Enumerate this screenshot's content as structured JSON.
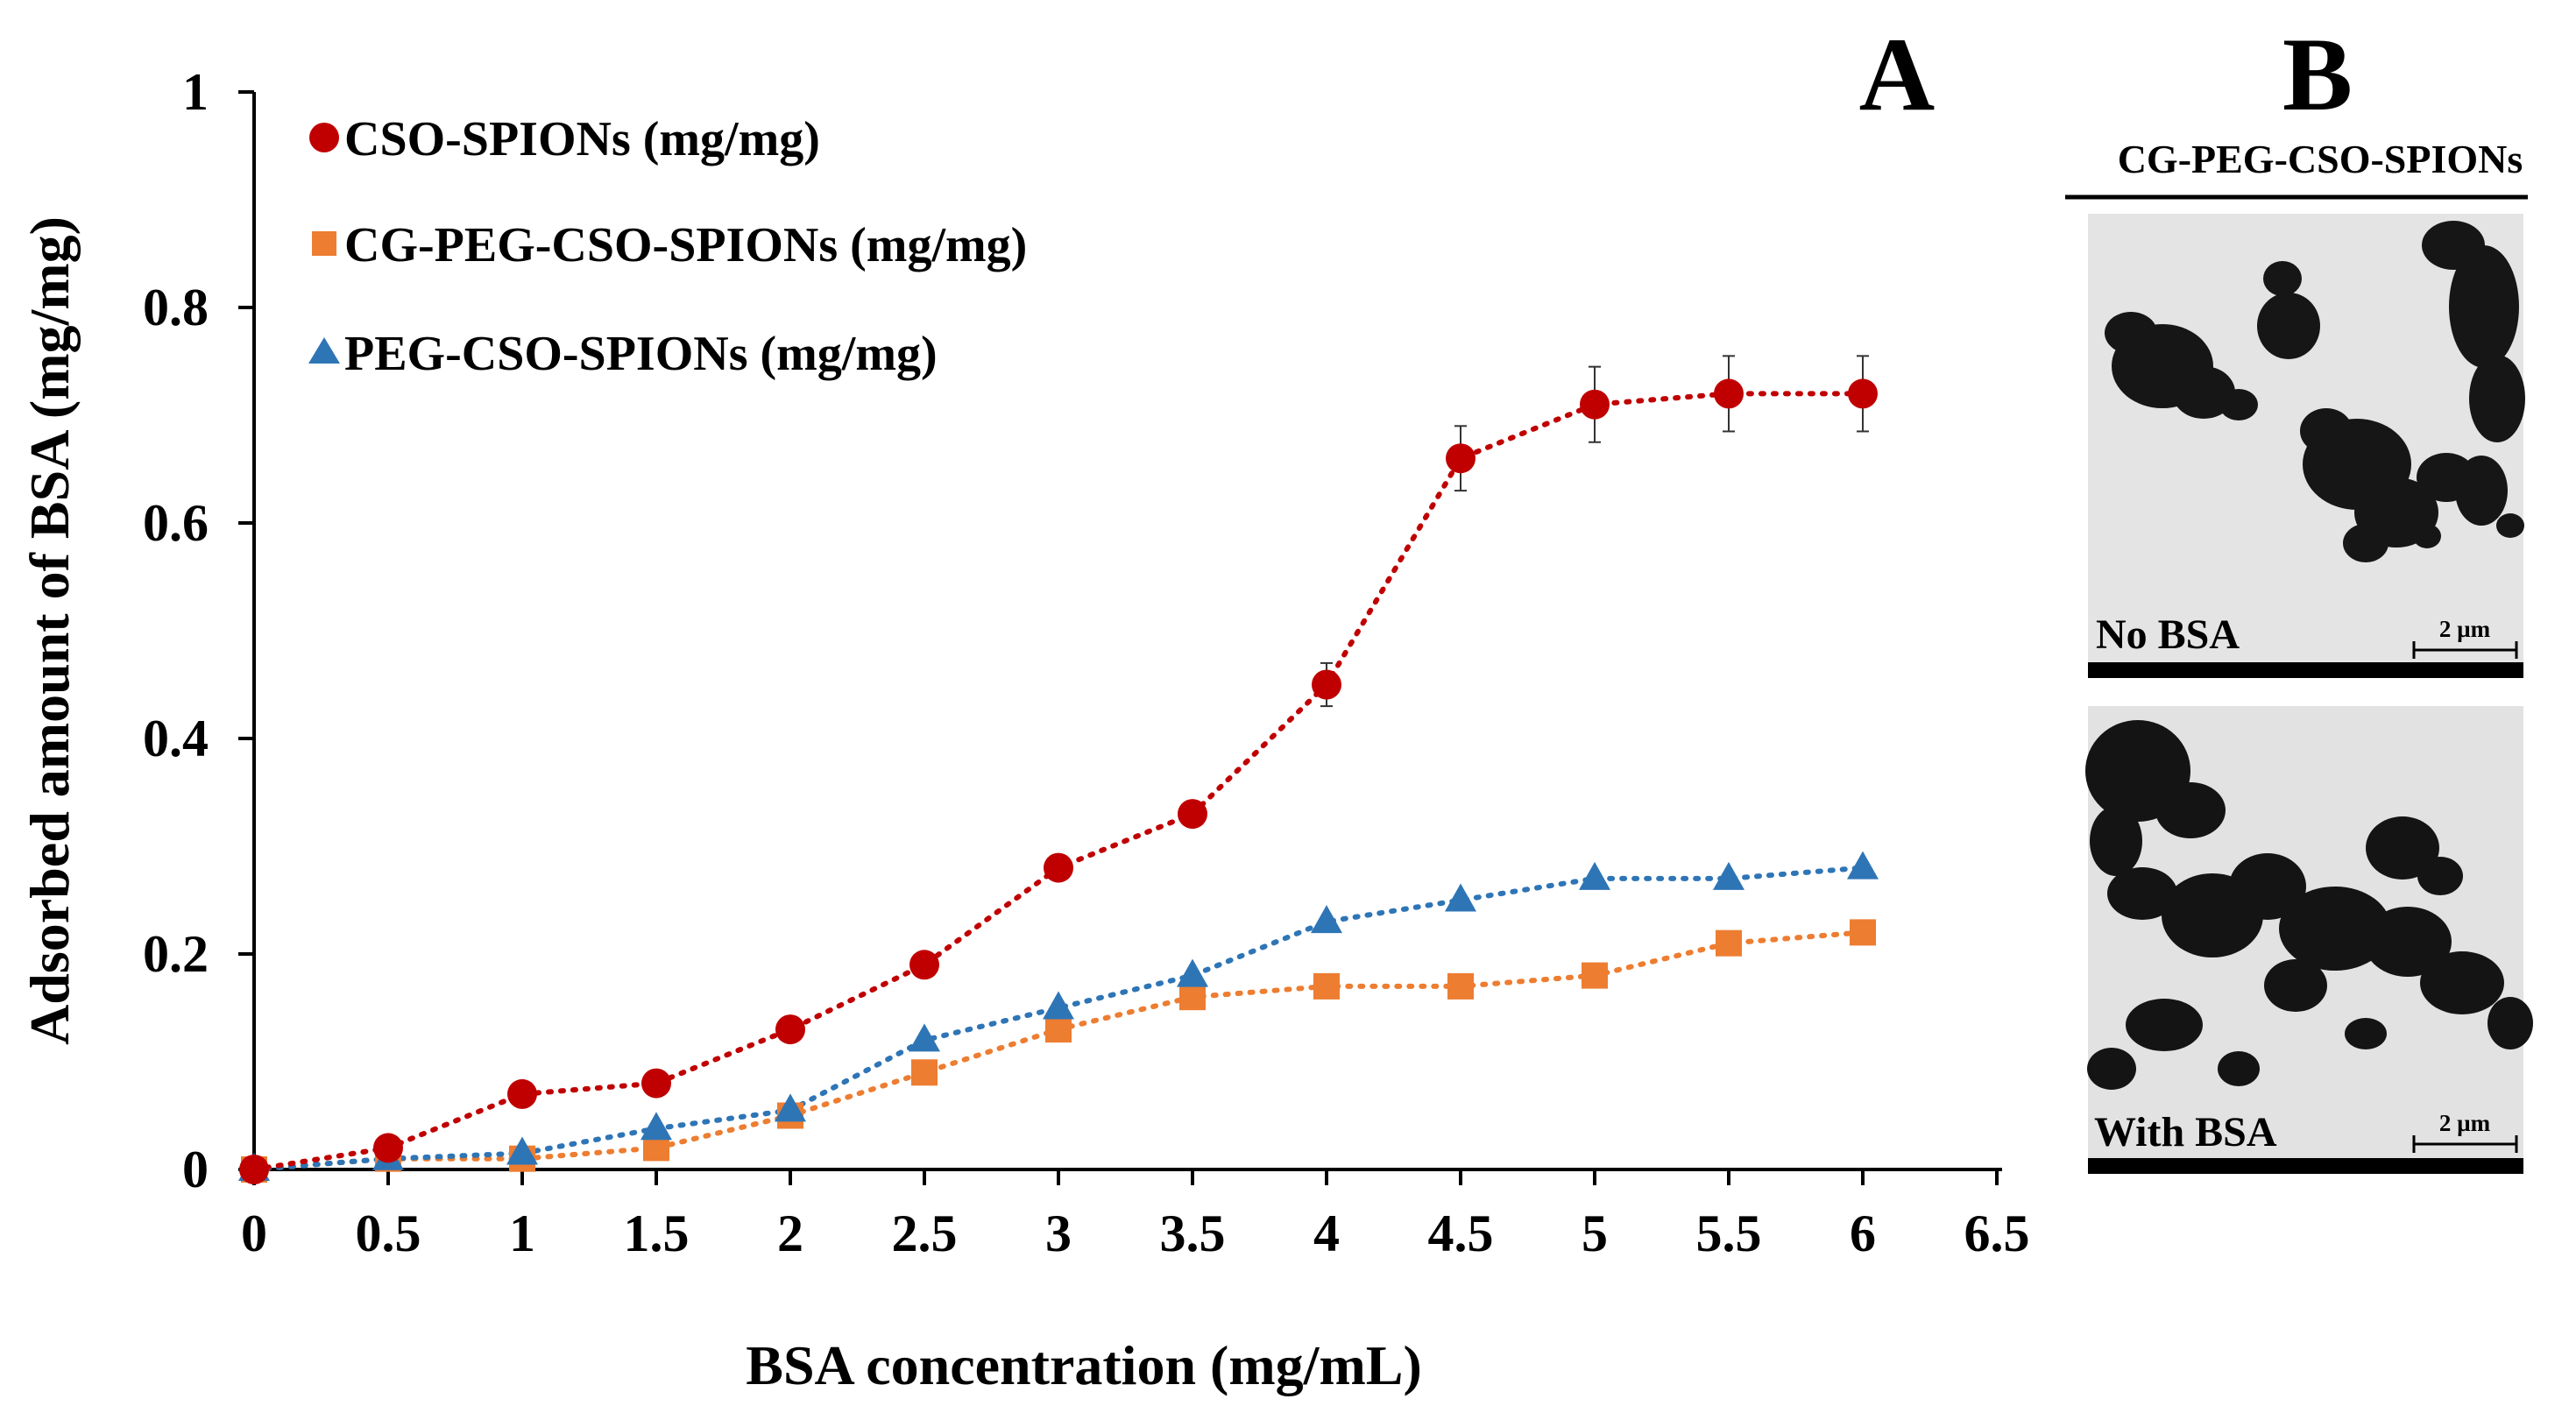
{
  "chart_data": {
    "type": "line",
    "panel_label": "A",
    "xlabel": "BSA concentration (mg/mL)",
    "ylabel": "Adsorbed amount of BSA (mg/mg)",
    "xlim": [
      0,
      6.5
    ],
    "ylim": [
      0,
      1
    ],
    "x_ticks": [
      "0",
      "0.5",
      "1",
      "1.5",
      "2",
      "2.5",
      "3",
      "3.5",
      "4",
      "4.5",
      "5",
      "5.5",
      "6",
      "6.5"
    ],
    "y_ticks": [
      "0",
      "0.2",
      "0.4",
      "0.6",
      "0.8",
      "1"
    ],
    "x_tick_values": [
      0,
      0.5,
      1,
      1.5,
      2,
      2.5,
      3,
      3.5,
      4,
      4.5,
      5,
      5.5,
      6,
      6.5
    ],
    "y_tick_values": [
      0,
      0.2,
      0.4,
      0.6,
      0.8,
      1
    ],
    "grid": false,
    "legend_position": "top-left",
    "x": [
      0,
      0.5,
      1,
      1.5,
      2,
      2.5,
      3,
      3.5,
      4,
      4.5,
      5,
      5.5,
      6
    ],
    "series": [
      {
        "name": "CSO-SPIONs (mg/mg)",
        "marker": "circle",
        "color": "#C00000",
        "values": [
          0,
          0.02,
          0.07,
          0.08,
          0.13,
          0.19,
          0.28,
          0.33,
          0.45,
          0.66,
          0.71,
          0.72,
          0.72
        ],
        "errors": [
          0,
          0,
          0,
          0,
          0,
          0,
          0,
          0,
          0.02,
          0.03,
          0.035,
          0.035,
          0.035
        ]
      },
      {
        "name": "CG-PEG-CSO-SPIONs (mg/mg)",
        "marker": "square",
        "color": "#ED7D31",
        "values": [
          0,
          0.01,
          0.01,
          0.02,
          0.05,
          0.09,
          0.13,
          0.16,
          0.17,
          0.17,
          0.18,
          0.21,
          0.22
        ],
        "errors": []
      },
      {
        "name": "PEG-CSO-SPIONs (mg/mg)",
        "marker": "triangle",
        "color": "#2E75B6",
        "values": [
          0,
          0.01,
          0.015,
          0.038,
          0.055,
          0.12,
          0.15,
          0.18,
          0.23,
          0.25,
          0.27,
          0.27,
          0.28
        ],
        "errors": []
      }
    ]
  },
  "panel_b": {
    "letter": "B",
    "title": "CG-PEG-CSO-SPIONs",
    "images": [
      {
        "label": "No BSA",
        "scale_bar": "2 µm"
      },
      {
        "label": "With BSA",
        "scale_bar": "2 µm"
      }
    ]
  }
}
